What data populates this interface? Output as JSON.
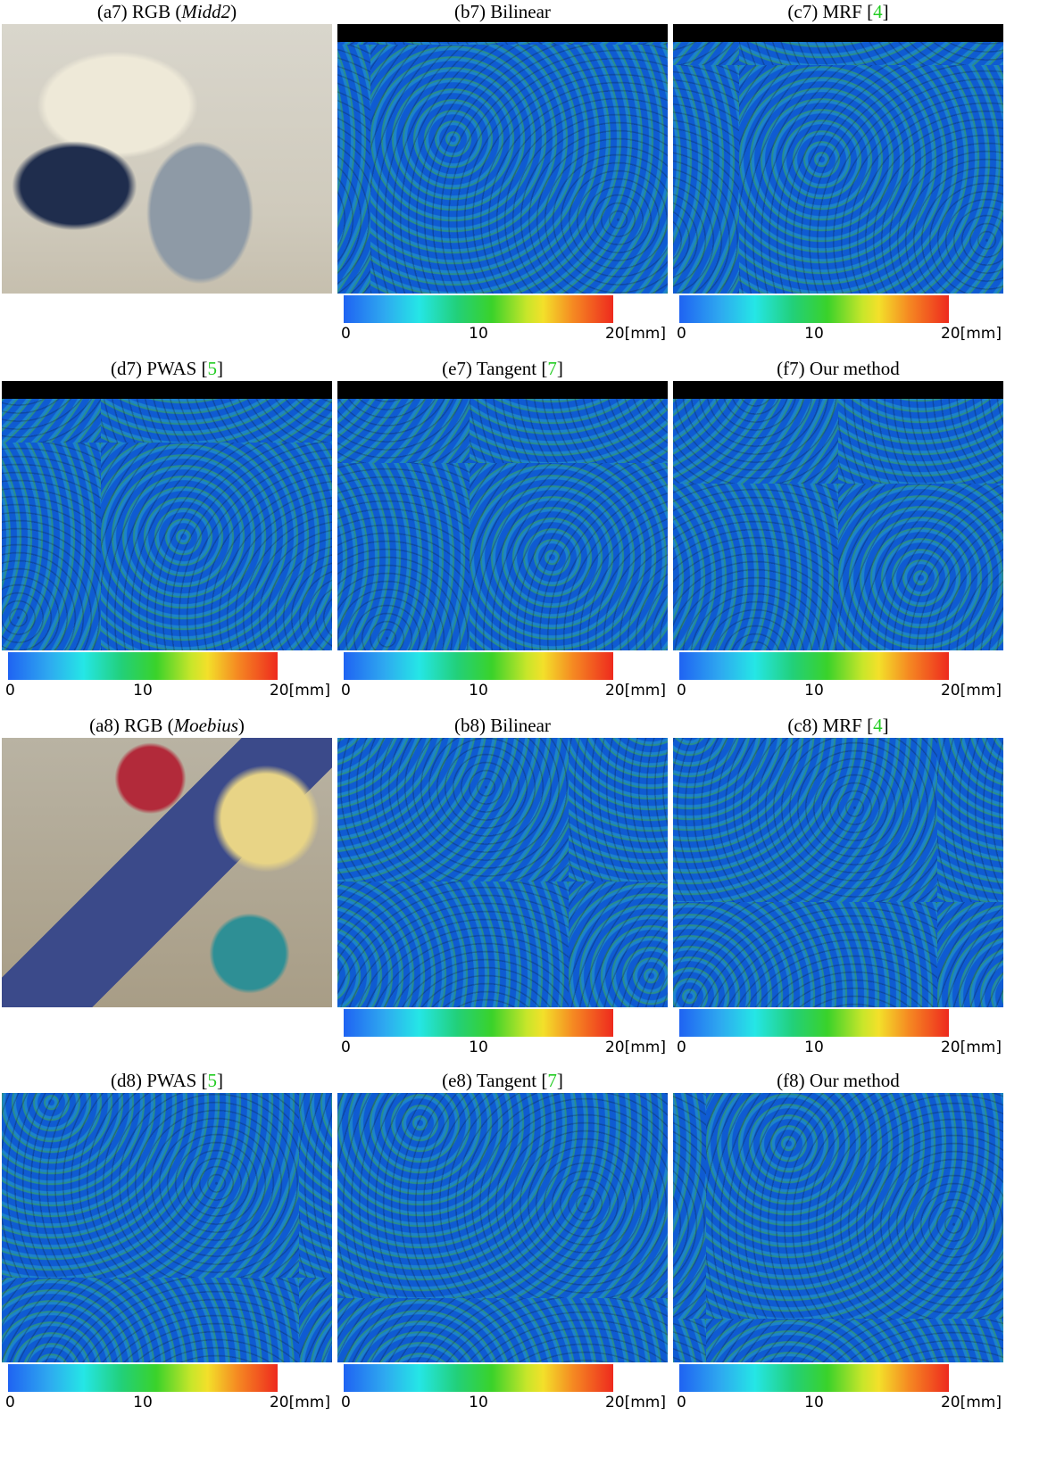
{
  "panels": [
    {
      "type": "rgb",
      "caption": "(a7) RGB (",
      "caption_em": "Midd2",
      "caption_end": ")"
    },
    {
      "type": "error",
      "caption": "(b7) Bilinear"
    },
    {
      "type": "error",
      "caption": "(c7) MRF [",
      "cite": "4",
      "caption_end": "]"
    },
    {
      "type": "error",
      "caption": "(d7) PWAS [",
      "cite": "5",
      "caption_end": "]"
    },
    {
      "type": "error",
      "caption": "(e7) Tangent [",
      "cite": "7",
      "caption_end": "]"
    },
    {
      "type": "error",
      "caption": "(f7) Our method"
    },
    {
      "type": "rgb",
      "caption": "(a8) RGB (",
      "caption_em": "Moebius",
      "caption_end": ")"
    },
    {
      "type": "error",
      "caption": "(b8) Bilinear"
    },
    {
      "type": "error",
      "caption": "(c8) MRF [",
      "cite": "4",
      "caption_end": "]"
    },
    {
      "type": "error",
      "caption": "(d8) PWAS [",
      "cite": "5",
      "caption_end": "]"
    },
    {
      "type": "error",
      "caption": "(e8) Tangent [",
      "cite": "7",
      "caption_end": "]"
    },
    {
      "type": "error",
      "caption": "(f8) Our method"
    }
  ],
  "colorbar": {
    "ticks": [
      "0",
      "10",
      "20[mm]"
    ]
  }
}
